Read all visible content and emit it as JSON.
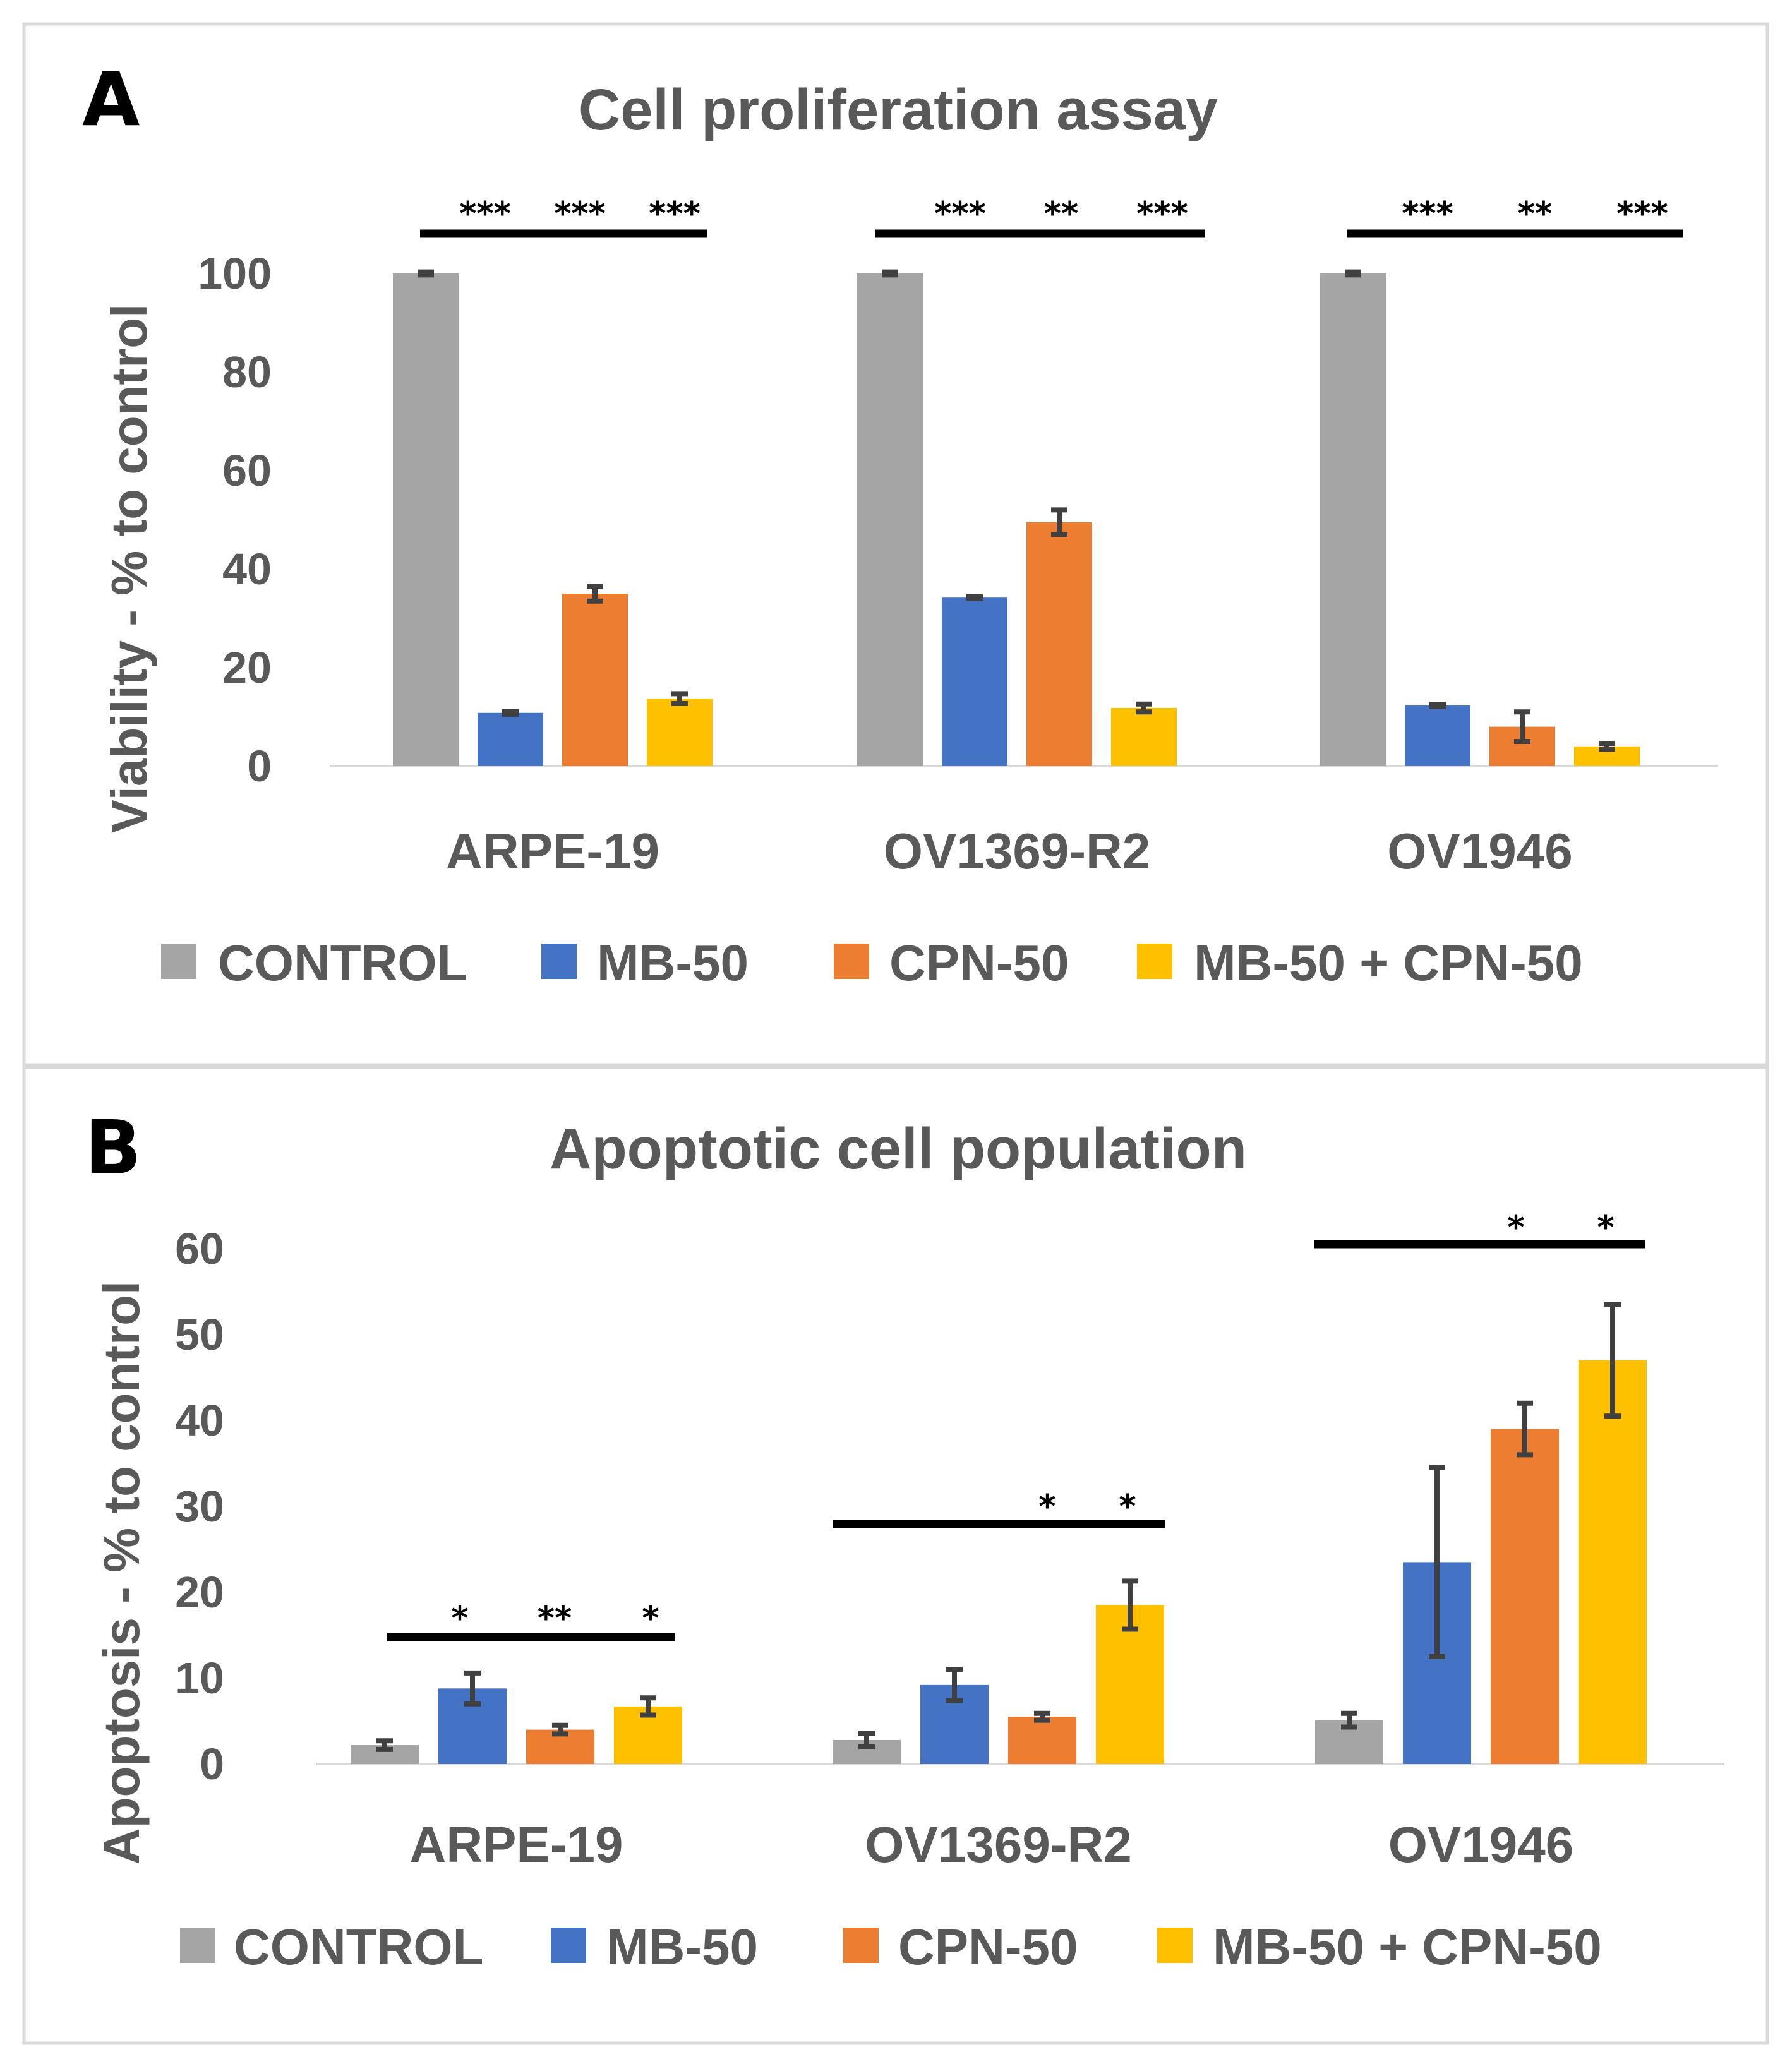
{
  "chart_data": [
    {
      "type": "bar",
      "panel_label": "A",
      "title": "Cell proliferation assay",
      "xlabel": "",
      "ylabel": "Viability - % to control",
      "ylim": [
        0,
        100
      ],
      "yticks": [
        "0",
        "20",
        "40",
        "60",
        "80",
        "100"
      ],
      "grid": false,
      "legend_position": "bottom",
      "categories": [
        "ARPE-19",
        "OV1369-R2",
        "OV1946"
      ],
      "series": [
        {
          "name": "CONTROL",
          "color": "#a5a5a5",
          "values": [
            100,
            100,
            100
          ],
          "errors": [
            0.3,
            0.3,
            0.3
          ]
        },
        {
          "name": "MB-50",
          "color": "#4472c4",
          "values": [
            10.8,
            34.2,
            12.3
          ],
          "errors": [
            0.3,
            0.2,
            0.2
          ]
        },
        {
          "name": "CPN-50",
          "color": "#ed7d31",
          "values": [
            35,
            49.5,
            8
          ],
          "errors": [
            1.5,
            2.5,
            3
          ]
        },
        {
          "name": "MB-50 + CPN-50",
          "color": "#ffc000",
          "values": [
            13.7,
            11.8,
            4
          ],
          "errors": [
            1,
            0.8,
            0.6
          ]
        }
      ],
      "significance": [
        {
          "category": "ARPE-19",
          "marks": [
            "***",
            "***",
            "***"
          ]
        },
        {
          "category": "OV1369-R2",
          "marks": [
            "***",
            "**",
            "***"
          ]
        },
        {
          "category": "OV1946",
          "marks": [
            "***",
            "**",
            "***"
          ]
        }
      ]
    },
    {
      "type": "bar",
      "panel_label": "B",
      "title": "Apoptotic cell population",
      "xlabel": "",
      "ylabel": "Apoptosis - % to control",
      "ylim": [
        0,
        60
      ],
      "yticks": [
        "0",
        "10",
        "20",
        "30",
        "40",
        "50",
        "60"
      ],
      "grid": false,
      "legend_position": "bottom",
      "categories": [
        "ARPE-19",
        "OV1369-R2",
        "OV1946"
      ],
      "series": [
        {
          "name": "CONTROL",
          "color": "#a5a5a5",
          "values": [
            2.2,
            2.8,
            5.1
          ],
          "errors": [
            0.5,
            0.8,
            0.8
          ]
        },
        {
          "name": "MB-50",
          "color": "#4472c4",
          "values": [
            8.8,
            9.2,
            23.5
          ],
          "errors": [
            1.8,
            1.8,
            11
          ]
        },
        {
          "name": "CPN-50",
          "color": "#ed7d31",
          "values": [
            4,
            5.5,
            39
          ],
          "errors": [
            0.5,
            0.4,
            3
          ]
        },
        {
          "name": "MB-50 + CPN-50",
          "color": "#ffc000",
          "values": [
            6.7,
            18.5,
            47
          ],
          "errors": [
            1,
            2.8,
            6.5
          ]
        }
      ],
      "significance": [
        {
          "category": "ARPE-19",
          "marks": [
            "*",
            "**",
            "*"
          ]
        },
        {
          "category": "OV1369-R2",
          "marks": [
            "*",
            "*"
          ]
        },
        {
          "category": "OV1946",
          "marks": [
            "*",
            "*"
          ]
        }
      ]
    }
  ]
}
